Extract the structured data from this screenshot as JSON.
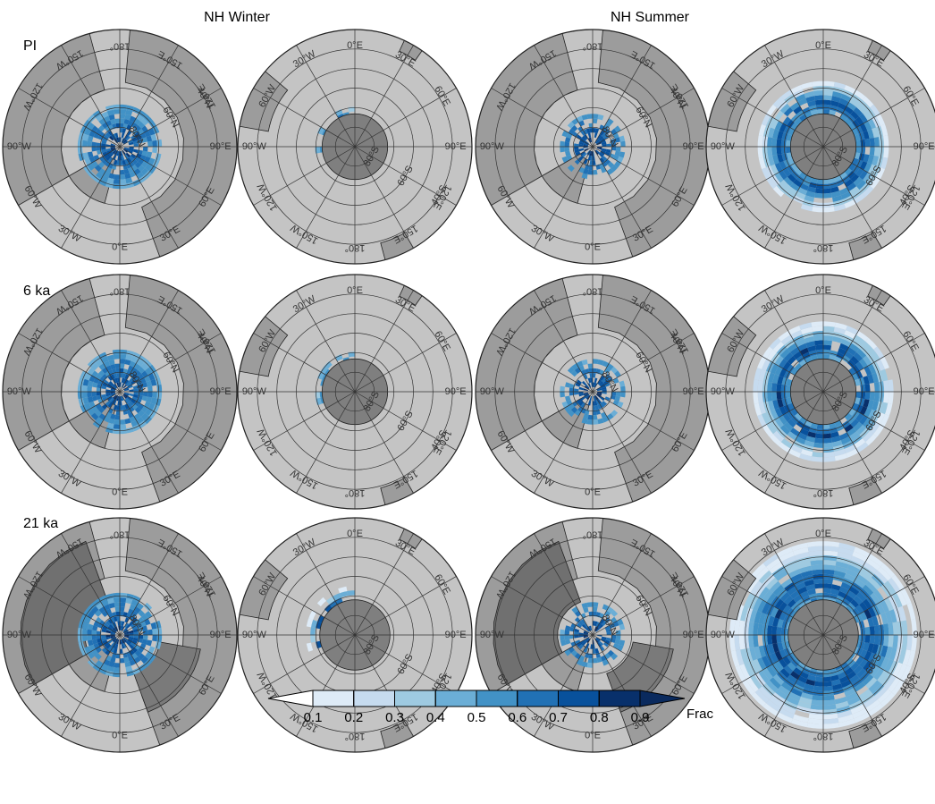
{
  "columns": [
    "NH Winter",
    "NH Summer"
  ],
  "rows": [
    "PI",
    "6 ka",
    "21 ka"
  ],
  "lon_ticks": [
    {
      "value": 0,
      "label": "0°E"
    },
    {
      "value": 30,
      "label": "30°E"
    },
    {
      "value": 60,
      "label": "60°E"
    },
    {
      "value": 90,
      "label": "90°E"
    },
    {
      "value": 120,
      "label": "120°E"
    },
    {
      "value": 150,
      "label": "150°E"
    },
    {
      "value": 180,
      "label": "180°"
    },
    {
      "value": 210,
      "label": "150°W"
    },
    {
      "value": 240,
      "label": "120°W"
    },
    {
      "value": 270,
      "label": "90°W"
    },
    {
      "value": 300,
      "label": "60°W"
    },
    {
      "value": 330,
      "label": "30°W"
    }
  ],
  "lat_ticks_nh": [
    {
      "value": 40,
      "label": "40°N"
    },
    {
      "value": 60,
      "label": "60°N"
    },
    {
      "value": 80,
      "label": "80°N"
    }
  ],
  "lat_ticks_sh": [
    {
      "value": 40,
      "label": "40°S"
    },
    {
      "value": 60,
      "label": "60°S"
    },
    {
      "value": 80,
      "label": "80°S"
    }
  ],
  "colorbar": {
    "ticks": [
      0.1,
      0.2,
      0.3,
      0.4,
      0.5,
      0.6,
      0.7,
      0.8,
      0.9
    ],
    "label": "Frac",
    "colors": [
      "#ffffff",
      "#deebf7",
      "#c6dbef",
      "#9ecae1",
      "#6baed6",
      "#4292c6",
      "#2171b5",
      "#08519c",
      "#08306b",
      "#0a2a5e"
    ]
  }
}
